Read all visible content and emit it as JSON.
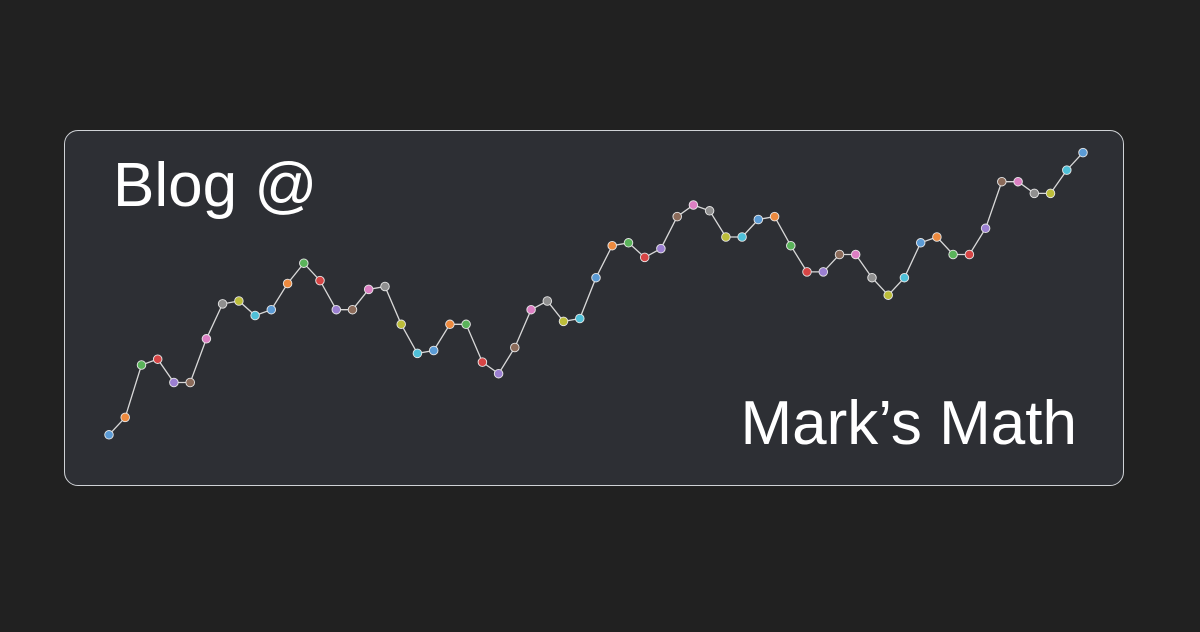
{
  "header": {
    "title": "Blog @",
    "subtitle": "Mark’s Math"
  },
  "colors": {
    "background": "#212121",
    "card": "#2d2f34",
    "card_border": "#cfd2d6",
    "text": "#ffffff",
    "line": "#d9d9d9"
  },
  "chart_data": {
    "type": "line",
    "title": "",
    "xlabel": "",
    "ylabel": "",
    "grid": false,
    "legend": "none",
    "ylim": [
      0,
      1
    ],
    "values": [
      0.09,
      0.15,
      0.33,
      0.35,
      0.27,
      0.27,
      0.42,
      0.54,
      0.55,
      0.5,
      0.52,
      0.61,
      0.68,
      0.62,
      0.52,
      0.52,
      0.59,
      0.6,
      0.47,
      0.37,
      0.38,
      0.47,
      0.47,
      0.34,
      0.3,
      0.39,
      0.52,
      0.55,
      0.48,
      0.49,
      0.63,
      0.74,
      0.75,
      0.7,
      0.73,
      0.84,
      0.88,
      0.86,
      0.77,
      0.77,
      0.83,
      0.84,
      0.74,
      0.65,
      0.65,
      0.71,
      0.71,
      0.63,
      0.57,
      0.63,
      0.75,
      0.77,
      0.71,
      0.71,
      0.8,
      0.96,
      0.96,
      0.92,
      0.92,
      1.0,
      1.06
    ],
    "point_colors": [
      "#5b9bd5",
      "#ed8a3f",
      "#5ab35a",
      "#d64545",
      "#9b7fd1",
      "#8b6b5a",
      "#dc7fc3",
      "#8f8f8f",
      "#bcbd3a",
      "#4fc0d8",
      "#5b9bd5",
      "#ed8a3f",
      "#5ab35a",
      "#d64545",
      "#9b7fd1",
      "#8b6b5a",
      "#dc7fc3",
      "#8f8f8f",
      "#bcbd3a",
      "#4fc0d8",
      "#5b9bd5",
      "#ed8a3f",
      "#5ab35a",
      "#d64545",
      "#9b7fd1",
      "#8b6b5a",
      "#dc7fc3",
      "#8f8f8f",
      "#bcbd3a",
      "#4fc0d8",
      "#5b9bd5",
      "#ed8a3f",
      "#5ab35a",
      "#d64545",
      "#9b7fd1",
      "#8b6b5a",
      "#dc7fc3",
      "#8f8f8f",
      "#bcbd3a",
      "#4fc0d8",
      "#5b9bd5",
      "#ed8a3f",
      "#5ab35a",
      "#d64545",
      "#9b7fd1",
      "#8b6b5a",
      "#dc7fc3",
      "#8f8f8f",
      "#bcbd3a",
      "#4fc0d8",
      "#5b9bd5",
      "#ed8a3f",
      "#5ab35a",
      "#d64545",
      "#9b7fd1",
      "#8b6b5a",
      "#dc7fc3",
      "#8f8f8f",
      "#bcbd3a",
      "#4fc0d8",
      "#5b9bd5"
    ]
  }
}
